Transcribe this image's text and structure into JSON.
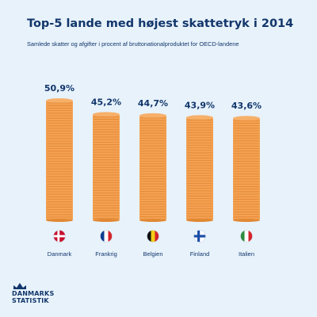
{
  "title": "Top-5 lande med højest skattetryk i 2014",
  "subtitle": "Samlede skatter og afgifter i procent af bruttonationalproduktet for OECD-landene",
  "logo": {
    "line1": "DANMARKS",
    "line2": "STATISTIK"
  },
  "colors": {
    "background": "#e7f2fb",
    "text": "#12366b",
    "coin": "#f4a153",
    "coin_line": "#e18833"
  },
  "chart_data": {
    "type": "bar",
    "title": "Top-5 lande med højest skattetryk i 2014",
    "subtitle": "Samlede skatter og afgifter i procent af bruttonationalproduktet for OECD-landene",
    "categories": [
      "Danmark",
      "Frankrig",
      "Belgien",
      "Finland",
      "Italien"
    ],
    "values": [
      50.9,
      45.2,
      44.7,
      43.9,
      43.6
    ],
    "value_labels": [
      "50,9%",
      "45,2%",
      "44,7%",
      "43,9%",
      "43,6%"
    ],
    "flag_icons": [
      "denmark-flag-icon",
      "france-flag-icon",
      "belgium-flag-icon",
      "finland-flag-icon",
      "italy-flag-icon"
    ],
    "xlabel": "",
    "ylabel": "",
    "grid": false
  }
}
